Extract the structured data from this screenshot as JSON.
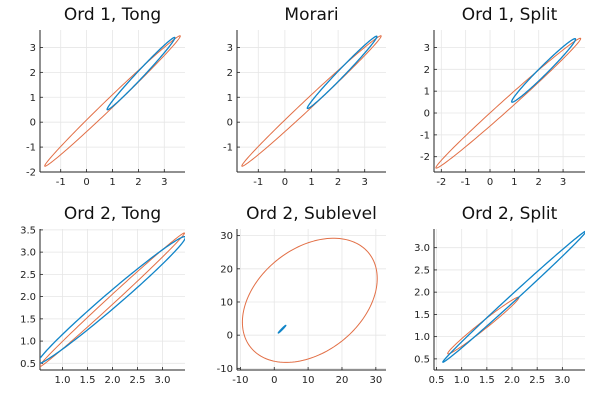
{
  "colors": {
    "outer": "#e26f46",
    "inner": "#0f84c8",
    "inner_dark": "#30509a"
  },
  "chart_data": [
    {
      "type": "line",
      "title": "Ord 1, Tong",
      "xlim": [
        -1.8,
        3.8
      ],
      "ylim": [
        -2,
        3.7
      ],
      "xticks": [
        -1,
        0,
        1,
        2,
        3
      ],
      "yticks": [
        -2,
        -1,
        0,
        1,
        2,
        3
      ],
      "grid": true,
      "series": [
        {
          "role": "outer",
          "shape": "ellipse",
          "cx": 1.0,
          "cy": 0.85,
          "a": 3.7,
          "b": 0.18,
          "angle_deg": 45
        },
        {
          "role": "inner",
          "shape": "ellipse",
          "cx": 2.1,
          "cy": 1.95,
          "a": 1.95,
          "b": 0.14,
          "angle_deg": 48
        }
      ]
    },
    {
      "type": "line",
      "title": "Morari",
      "xlim": [
        -1.8,
        3.8
      ],
      "ylim": [
        -2,
        3.7
      ],
      "xticks": [
        -1,
        0,
        1,
        2,
        3
      ],
      "yticks": [
        -1,
        0,
        1,
        2,
        3
      ],
      "grid": true,
      "series": [
        {
          "role": "outer",
          "shape": "ellipse",
          "cx": 1.0,
          "cy": 0.85,
          "a": 3.7,
          "b": 0.18,
          "angle_deg": 45
        },
        {
          "role": "inner",
          "shape": "ellipse",
          "cx": 2.15,
          "cy": 2.0,
          "a": 1.95,
          "b": 0.14,
          "angle_deg": 48
        }
      ]
    },
    {
      "type": "line",
      "title": "Ord 1, Split",
      "xlim": [
        -2.3,
        3.9
      ],
      "ylim": [
        -2.7,
        3.8
      ],
      "xticks": [
        -2,
        -1,
        0,
        1,
        2,
        3
      ],
      "yticks": [
        -2,
        -1,
        0,
        1,
        2,
        3
      ],
      "grid": true,
      "series": [
        {
          "role": "outer",
          "shape": "ellipse",
          "cx": 0.75,
          "cy": 0.45,
          "a": 4.2,
          "b": 0.22,
          "angle_deg": 45
        },
        {
          "role": "inner",
          "shape": "ellipse",
          "cx": 2.2,
          "cy": 1.95,
          "a": 1.95,
          "b": 0.18,
          "angle_deg": 48
        }
      ]
    },
    {
      "type": "line",
      "title": "Ord 2, Tong",
      "xlim": [
        0.55,
        3.45
      ],
      "ylim": [
        0.35,
        3.52
      ],
      "xticks": [
        1.0,
        1.5,
        2.0,
        2.5,
        3.0
      ],
      "yticks": [
        0.5,
        1.0,
        1.5,
        2.0,
        2.5,
        3.0,
        3.5
      ],
      "grid": true,
      "series": [
        {
          "role": "outer",
          "shape": "ellipse",
          "cx": 1.98,
          "cy": 1.92,
          "a": 2.1,
          "b": 0.08,
          "angle_deg": 46
        },
        {
          "role": "inner",
          "shape": "ellipse",
          "cx": 1.98,
          "cy": 1.92,
          "a": 2.05,
          "b": 0.16,
          "angle_deg": 44
        }
      ]
    },
    {
      "type": "line",
      "title": "Ord 2, Sublevel",
      "xlim": [
        -11,
        33
      ],
      "ylim": [
        -10.5,
        32
      ],
      "xticks": [
        -10,
        0,
        10,
        20,
        30
      ],
      "yticks": [
        -10,
        0,
        10,
        20,
        30
      ],
      "grid": true,
      "series": [
        {
          "role": "outer",
          "shape": "ellipse",
          "cx": 10.5,
          "cy": 10.5,
          "a": 22.5,
          "b": 15.5,
          "angle_deg": 40
        },
        {
          "role": "inner",
          "shape": "ellipse",
          "cx": 2.3,
          "cy": 1.8,
          "a": 1.6,
          "b": 0.15,
          "angle_deg": 46
        }
      ]
    },
    {
      "type": "line",
      "title": "Ord 2, Split",
      "xlim": [
        0.45,
        3.45
      ],
      "ylim": [
        0.25,
        3.42
      ],
      "xticks": [
        0.5,
        1.0,
        1.5,
        2.0,
        2.5,
        3.0
      ],
      "yticks": [
        0.5,
        1.0,
        1.5,
        2.0,
        2.5,
        3.0
      ],
      "grid": true,
      "series": [
        {
          "role": "outer",
          "shape": "ellipse",
          "cx": 1.43,
          "cy": 1.25,
          "a": 0.95,
          "b": 0.08,
          "angle_deg": 42
        },
        {
          "role": "inner",
          "shape": "ellipse",
          "cx": 2.05,
          "cy": 1.9,
          "a": 2.05,
          "b": 0.07,
          "angle_deg": 46
        }
      ]
    }
  ]
}
